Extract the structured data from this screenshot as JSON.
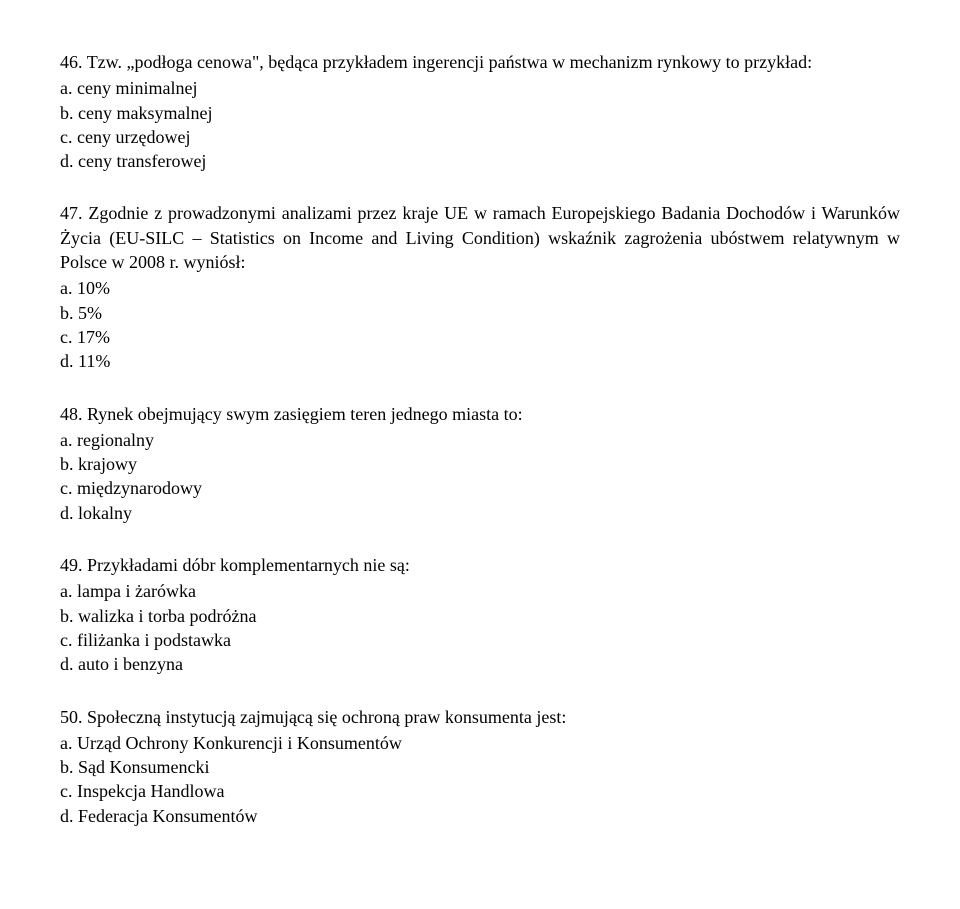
{
  "questions": [
    {
      "number": "46.",
      "text": "Tzw. „podłoga cenowa\", będąca przykładem ingerencji państwa w mechanizm rynkowy to przykład:",
      "justified": false,
      "options": [
        {
          "letter": "a.",
          "text": "ceny minimalnej"
        },
        {
          "letter": "b.",
          "text": "ceny maksymalnej"
        },
        {
          "letter": "c.",
          "text": "ceny urzędowej"
        },
        {
          "letter": "d.",
          "text": "ceny transferowej"
        }
      ]
    },
    {
      "number": "47.",
      "text": "Zgodnie z prowadzonymi analizami przez kraje UE w ramach Europejskiego Badania Dochodów i Warunków Życia (EU-SILC – Statistics on Income and Living Condition) wskaźnik zagrożenia ubóstwem relatywnym w Polsce w 2008 r. wyniósł:",
      "justified": true,
      "options": [
        {
          "letter": "a.",
          "text": "10%"
        },
        {
          "letter": "b.",
          "text": "5%"
        },
        {
          "letter": "c.",
          "text": "17%"
        },
        {
          "letter": "d.",
          "text": "11%"
        }
      ]
    },
    {
      "number": "48.",
      "text": "Rynek obejmujący swym zasięgiem teren jednego miasta to:",
      "justified": false,
      "options": [
        {
          "letter": "a.",
          "text": "regionalny"
        },
        {
          "letter": "b.",
          "text": "krajowy"
        },
        {
          "letter": "c.",
          "text": "międzynarodowy"
        },
        {
          "letter": "d.",
          "text": "lokalny"
        }
      ]
    },
    {
      "number": "49.",
      "text": "Przykładami dóbr komplementarnych nie są:",
      "justified": false,
      "options": [
        {
          "letter": "a.",
          "text": "lampa i żarówka"
        },
        {
          "letter": "b.",
          "text": "walizka i torba podróżna"
        },
        {
          "letter": "c.",
          "text": "filiżanka i podstawka"
        },
        {
          "letter": "d.",
          "text": "auto i benzyna"
        }
      ]
    },
    {
      "number": "50.",
      "text": "Społeczną instytucją zajmującą się ochroną praw konsumenta jest:",
      "justified": false,
      "options": [
        {
          "letter": "a.",
          "text": "Urząd Ochrony Konkurencji i Konsumentów"
        },
        {
          "letter": "b.",
          "text": "Sąd Konsumencki"
        },
        {
          "letter": "c.",
          "text": "Inspekcja Handlowa"
        },
        {
          "letter": "d.",
          "text": "Federacja Konsumentów"
        }
      ]
    }
  ]
}
